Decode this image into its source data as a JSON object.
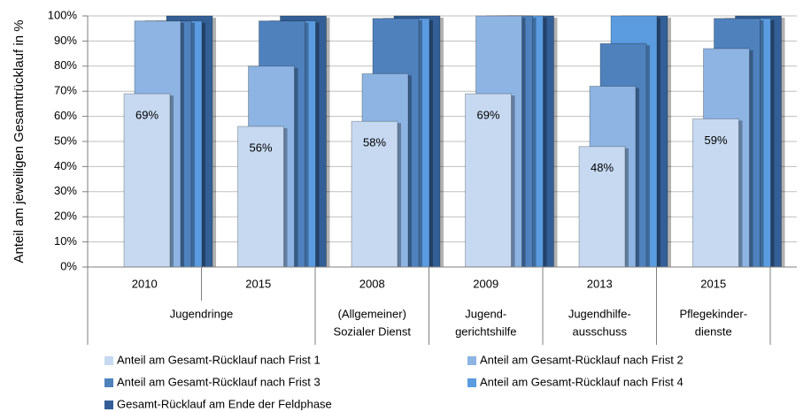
{
  "chart_data": {
    "type": "bar",
    "y_label": "Anteil am jeweiligen Gesamtrücklauf in %",
    "categories": [
      "2010",
      "2015",
      "2008",
      "2009",
      "2013",
      "2015"
    ],
    "groups": [
      {
        "lines": [
          "Jugendringe"
        ],
        "span": 2
      },
      {
        "lines": [
          "(Allgemeiner)",
          "Sozialer Dienst"
        ],
        "span": 1
      },
      {
        "lines": [
          "Jugend-",
          "gerichtshilfe"
        ],
        "span": 1
      },
      {
        "lines": [
          "Jugendhilfe-",
          "ausschuss"
        ],
        "span": 1
      },
      {
        "lines": [
          "Pflegekinder-",
          "dienste"
        ],
        "span": 1
      }
    ],
    "series": [
      {
        "name": "Anteil am Gesamt-Rücklauf nach Frist 1",
        "color": "#c6d9f1",
        "values": [
          69,
          56,
          58,
          69,
          48,
          59
        ],
        "value_labels": [
          "69%",
          "56%",
          "58%",
          "69%",
          "48%",
          "59%"
        ]
      },
      {
        "name": "Anteil am Gesamt-Rücklauf nach Frist 2",
        "color": "#8db4e2",
        "values": [
          98,
          80,
          77,
          100,
          72,
          87
        ]
      },
      {
        "name": "Anteil am Gesamt-Rücklauf nach Frist 3",
        "color": "#4f81bd",
        "values": [
          98,
          98,
          99,
          100,
          89,
          99
        ]
      },
      {
        "name": "Anteil am Gesamt-Rücklauf nach Frist 4",
        "color": "#5b9be0",
        "values": [
          98,
          98,
          99,
          100,
          100,
          99
        ]
      },
      {
        "name": "Gesamt-Rücklauf am Ende der Feldphase",
        "color": "#335f96",
        "values": [
          100,
          100,
          100,
          100,
          100,
          100
        ]
      }
    ],
    "ylim": [
      0,
      100
    ],
    "yticks": [
      {
        "value": 0,
        "label": "0%"
      },
      {
        "value": 10,
        "label": "10%"
      },
      {
        "value": 20,
        "label": "20%"
      },
      {
        "value": 30,
        "label": "30%"
      },
      {
        "value": 40,
        "label": "40%"
      },
      {
        "value": 50,
        "label": "50%"
      },
      {
        "value": 60,
        "label": "60%"
      },
      {
        "value": 70,
        "label": "70%"
      },
      {
        "value": 80,
        "label": "80%"
      },
      {
        "value": 90,
        "label": "90%"
      },
      {
        "value": 100,
        "label": "100%"
      }
    ],
    "grid": true
  }
}
